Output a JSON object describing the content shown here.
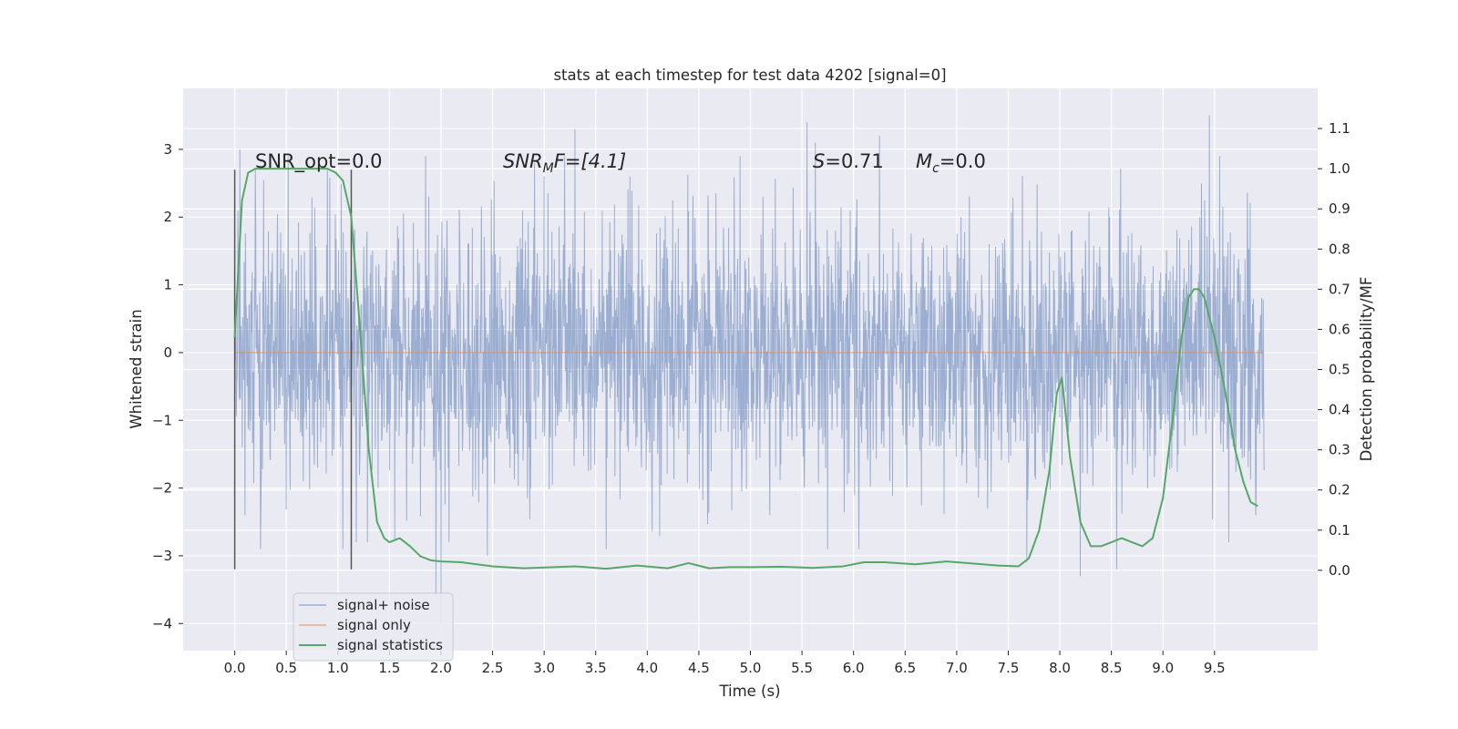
{
  "chart_data": {
    "type": "line",
    "title": "stats at each timestep for test data 4202 [signal=0]",
    "xlabel": "Time (s)",
    "ylabel": "Whitened strain",
    "y2label": "Detection probability/MF",
    "xlim": [
      -0.5,
      10.5
    ],
    "ylim": [
      -4.4,
      3.9
    ],
    "y2lim": [
      -0.2,
      1.2
    ],
    "x_ticks": [
      "0.0",
      "0.5",
      "1.0",
      "1.5",
      "2.0",
      "2.5",
      "3.0",
      "3.5",
      "4.0",
      "4.5",
      "5.0",
      "5.5",
      "6.0",
      "6.5",
      "7.0",
      "7.5",
      "8.0",
      "8.5",
      "9.0",
      "9.5"
    ],
    "y_ticks": [
      "3",
      "2",
      "1",
      "0",
      "−1",
      "−2",
      "−3",
      "−4"
    ],
    "y2_ticks": [
      "1.1",
      "1.0",
      "0.9",
      "0.8",
      "0.7",
      "0.6",
      "0.5",
      "0.4",
      "0.3",
      "0.2",
      "0.1",
      "0.0"
    ],
    "grid": true,
    "legend_position": "lower-left",
    "colors": {
      "background": "#eaeaf2",
      "grid": "#ffffff",
      "noise": "#4c72b0",
      "signal": "#dd8452",
      "stats": "#55a868",
      "markers": "#444444"
    },
    "annotations": {
      "snr_opt": "SNR_opt=0.0",
      "snr_mf_prefix": "SNR",
      "snr_mf_sub": "M",
      "snr_mf_suffix": "F=[4.1]",
      "s_label_prefix": "S",
      "s_label_suffix": "=0.71",
      "mc_prefix": "M",
      "mc_sub": "c",
      "mc_suffix": "=0.0"
    },
    "vertical_markers": [
      {
        "x": 0.0,
        "y": [
          -3.2,
          2.7
        ]
      },
      {
        "x": 1.13,
        "y": [
          -3.2,
          2.7
        ]
      }
    ],
    "series": [
      {
        "name": "signal+ noise",
        "kind": "noise",
        "x_range": [
          0.0,
          9.98
        ],
        "typical_amplitude": 1.5,
        "spikes": [
          {
            "x": 0.05,
            "y": 3.0
          },
          {
            "x": 0.1,
            "y": -2.4
          },
          {
            "x": 0.2,
            "y": 2.7
          },
          {
            "x": 0.25,
            "y": -2.9
          },
          {
            "x": 0.52,
            "y": 2.9
          },
          {
            "x": 0.9,
            "y": 2.7
          },
          {
            "x": 1.05,
            "y": -2.9
          },
          {
            "x": 1.85,
            "y": 2.9
          },
          {
            "x": 1.95,
            "y": -3.6
          },
          {
            "x": 2.0,
            "y": -4.0
          },
          {
            "x": 2.45,
            "y": -3.0
          },
          {
            "x": 3.0,
            "y": 2.6
          },
          {
            "x": 3.2,
            "y": 2.9
          },
          {
            "x": 3.3,
            "y": 3.3
          },
          {
            "x": 3.6,
            "y": -2.9
          },
          {
            "x": 4.9,
            "y": 2.9
          },
          {
            "x": 5.55,
            "y": 3.4
          },
          {
            "x": 5.63,
            "y": 3.1
          },
          {
            "x": 5.75,
            "y": -2.9
          },
          {
            "x": 6.05,
            "y": -2.9
          },
          {
            "x": 6.25,
            "y": 3.2
          },
          {
            "x": 7.68,
            "y": -3.1
          },
          {
            "x": 8.2,
            "y": -3.3
          },
          {
            "x": 8.55,
            "y": -3.2
          },
          {
            "x": 9.45,
            "y": 3.5
          },
          {
            "x": 9.55,
            "y": 2.9
          },
          {
            "x": 9.9,
            "y": -2.4
          }
        ]
      },
      {
        "name": "signal only",
        "kind": "flat",
        "x": [
          0.0,
          9.98
        ],
        "y": [
          0.0,
          0.0
        ]
      },
      {
        "name": "signal statistics",
        "kind": "line",
        "axis": "right",
        "x": [
          0.0,
          0.07,
          0.13,
          0.2,
          0.3,
          0.5,
          0.7,
          0.9,
          0.98,
          1.05,
          1.13,
          1.2,
          1.3,
          1.38,
          1.45,
          1.5,
          1.6,
          1.7,
          1.8,
          1.9,
          2.0,
          2.2,
          2.5,
          2.8,
          3.1,
          3.3,
          3.6,
          3.9,
          4.2,
          4.4,
          4.6,
          4.8,
          5.0,
          5.3,
          5.6,
          5.9,
          6.1,
          6.3,
          6.6,
          6.9,
          7.1,
          7.4,
          7.6,
          7.7,
          7.8,
          7.9,
          7.97,
          8.02,
          8.1,
          8.2,
          8.3,
          8.4,
          8.5,
          8.6,
          8.7,
          8.8,
          8.9,
          9.0,
          9.1,
          9.18,
          9.25,
          9.3,
          9.35,
          9.4,
          9.5,
          9.6,
          9.7,
          9.78,
          9.85,
          9.92
        ],
        "y": [
          0.58,
          0.92,
          0.99,
          1.0,
          1.0,
          1.0,
          1.0,
          1.0,
          0.99,
          0.97,
          0.88,
          0.65,
          0.3,
          0.12,
          0.08,
          0.07,
          0.08,
          0.06,
          0.035,
          0.025,
          0.022,
          0.02,
          0.01,
          0.005,
          0.008,
          0.01,
          0.004,
          0.012,
          0.005,
          0.018,
          0.005,
          0.008,
          0.008,
          0.009,
          0.006,
          0.01,
          0.02,
          0.02,
          0.015,
          0.022,
          0.018,
          0.012,
          0.01,
          0.03,
          0.1,
          0.25,
          0.44,
          0.48,
          0.28,
          0.12,
          0.06,
          0.06,
          0.07,
          0.08,
          0.07,
          0.06,
          0.08,
          0.18,
          0.39,
          0.58,
          0.68,
          0.7,
          0.7,
          0.68,
          0.58,
          0.45,
          0.3,
          0.22,
          0.17,
          0.16
        ]
      }
    ]
  }
}
